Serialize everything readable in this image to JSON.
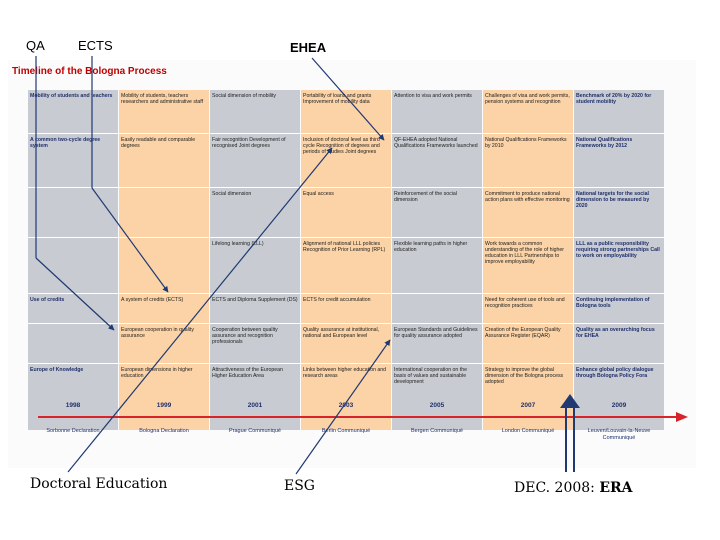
{
  "annotations": {
    "qa": "QA",
    "ects": "ECTS",
    "ehea": "EHEA",
    "doctoral": "Doctoral Education",
    "esg": "ESG",
    "dec_prefix": "DEC. 2008: ",
    "dec_era": "ERA"
  },
  "figure": {
    "title": "Timeline of the Bologna Process",
    "colors": {
      "grey": "#c8ccd2",
      "peach": "#fbd3a6",
      "line": "#d6242a",
      "arrow": "#1f3a73"
    },
    "columns": [
      {
        "year": "1998",
        "event": "Sorbonne Declaration",
        "shade": "grey",
        "cells": [
          "Mobility of students and teachers",
          "A common two-cycle degree system",
          "",
          "",
          "Use of credits",
          "",
          "Europe of Knowledge"
        ],
        "bold": true
      },
      {
        "year": "1999",
        "event": "Bologna Declaration",
        "shade": "peach",
        "cells": [
          "Mobility of students, teachers researchers and administrative staff",
          "Easily readable and comparable degrees",
          "",
          "",
          "A system of credits (ECTS)",
          "European cooperation in quality assurance",
          "European dimensions in higher education"
        ],
        "bold": false
      },
      {
        "year": "2001",
        "event": "Prague Communiqué",
        "shade": "grey",
        "cells": [
          "Social dimension of mobility",
          "Fair recognition Development of recognised Joint degrees",
          "Social dimension",
          "Lifelong learning (LLL)",
          "ECTS and Diploma Supplement (DS)",
          "Cooperation between quality assurance and recognition professionals",
          "Attractiveness of the European Higher Education Area"
        ],
        "bold": false
      },
      {
        "year": "2003",
        "event": "Berlin Communiqué",
        "shade": "peach",
        "cells": [
          "Portability of loans and grants Improvement of mobility data",
          "Inclusion of doctoral level as third cycle Recognition of degrees and periods of studies Joint degrees",
          "Equal access",
          "Alignment of national LLL policies Recognition of Prior Learning (RPL)",
          "ECTS for credit accumulation",
          "Quality assurance at institutional, national and European level",
          "Links between higher education and research areas"
        ],
        "bold": false
      },
      {
        "year": "2005",
        "event": "Bergen Communiqué",
        "shade": "grey",
        "cells": [
          "Attention to visa and work permits",
          "QF-EHEA adopted National Qualifications Frameworks launched",
          "Reinforcement of the social dimension",
          "Flexible learning paths in higher education",
          "",
          "European Standards and Guidelines for quality assurance adopted",
          "International cooperation on the basis of values and sustainable development"
        ],
        "bold": false
      },
      {
        "year": "2007",
        "event": "London Communiqué",
        "shade": "peach",
        "cells": [
          "Challenges of visa and work permits, pension systems and recognition",
          "National Qualifications Frameworks by 2010",
          "Commitment to produce national action plans with effective monitoring",
          "Work towards a common understanding of the role of higher education in LLL Partnerships to improve employability",
          "Need for coherent use of tools and recognition practices",
          "Creation of the European Quality Assurance Register (EQAR)",
          "Strategy to improve the global dimension of the Bologna process adopted"
        ],
        "bold": false
      },
      {
        "year": "2009",
        "event": "Leuven/Louvain-la-Neuve Communiqué",
        "shade": "grey",
        "cells": [
          "Benchmark of 20% by 2020 for student mobility",
          "National Qualifications Frameworks by 2012",
          "National targets for the social dimension to be measured by 2020",
          "LLL as a public responsibility requiring strong partnerships Call to work on employability",
          "Continuing implementation of Bologna tools",
          "Quality as an overarching focus for EHEA",
          "Enhance global policy dialogue through Bologna Policy Fora"
        ],
        "bold": true
      }
    ]
  }
}
